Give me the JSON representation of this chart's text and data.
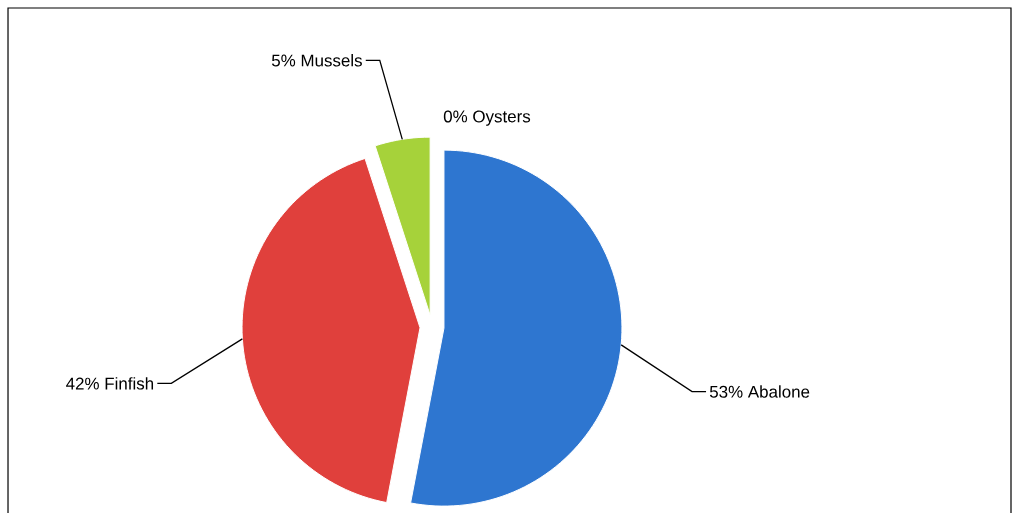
{
  "chart_data": {
    "type": "pie",
    "categories": [
      "Abalone",
      "Finfish",
      "Mussels",
      "Oysters"
    ],
    "values": [
      53,
      42,
      5,
      0
    ],
    "value_labels": [
      "53%",
      "42%",
      "5%",
      "0%"
    ],
    "colors": [
      "#2e76d0",
      "#e0403c",
      "#a6d23a",
      "#e8a030"
    ]
  }
}
